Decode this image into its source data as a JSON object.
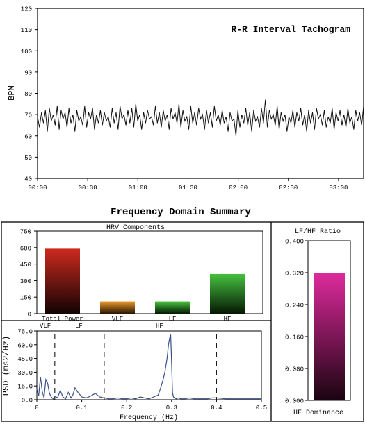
{
  "chart_data": [
    {
      "type": "line",
      "title": "R-R Interval Tachogram",
      "ylabel": "BPM",
      "xlabel": "",
      "ylim": [
        40,
        120
      ],
      "yticks": [
        40,
        50,
        60,
        70,
        80,
        90,
        100,
        110,
        120
      ],
      "xticks": [
        "00:00",
        "00:30",
        "01:00",
        "01:30",
        "02:00",
        "02:30",
        "03:00"
      ],
      "x_seconds_range": [
        0,
        195
      ],
      "y": [
        69,
        64,
        71,
        66,
        72,
        62,
        73,
        67,
        70,
        65,
        74,
        63,
        72,
        68,
        71,
        64,
        73,
        66,
        70,
        62,
        72,
        67,
        69,
        65,
        74,
        64,
        71,
        68,
        73,
        63,
        70,
        66,
        72,
        65,
        71,
        67,
        69,
        64,
        73,
        66,
        71,
        63,
        74,
        68,
        70,
        65,
        72,
        66,
        73,
        64,
        75,
        67,
        70,
        63,
        71,
        66,
        72,
        68,
        69,
        65,
        74,
        66,
        71,
        64,
        72,
        67,
        70,
        63,
        73,
        68,
        71,
        66,
        75,
        64,
        72,
        67,
        69,
        63,
        74,
        66,
        71,
        65,
        73,
        68,
        70,
        63,
        72,
        66,
        71,
        64,
        74,
        67,
        70,
        65,
        72,
        66,
        69,
        62,
        71,
        67,
        68,
        60,
        72,
        64,
        70,
        66,
        73,
        65,
        71,
        62,
        72,
        67,
        69,
        64,
        73,
        66,
        77,
        64,
        72,
        68,
        70,
        65,
        74,
        63,
        71,
        67,
        70,
        62,
        69,
        66,
        72,
        64,
        71,
        67,
        73,
        65,
        70,
        62,
        72,
        66,
        71,
        63,
        73,
        68,
        70,
        65,
        72,
        64,
        69,
        66,
        73,
        63,
        71,
        67,
        72,
        65,
        70,
        64,
        73,
        66,
        69,
        63,
        72,
        67,
        71,
        65,
        74
      ]
    },
    {
      "type": "bar",
      "section_title": "Frequency Domain Summary",
      "title": "HRV Components",
      "categories": [
        "Total Power",
        "VLF",
        "LF",
        "HF"
      ],
      "values": [
        590,
        110,
        110,
        360
      ],
      "ylim": [
        0,
        750
      ],
      "yticks": [
        0,
        150,
        300,
        450,
        600,
        750
      ],
      "colors": [
        "#cc2a1e",
        "#e8962a",
        "#3fb53a",
        "#3fb53a"
      ]
    },
    {
      "type": "line",
      "ylabel": "PSD (ms2/Hz)",
      "xlabel": "Frequency (Hz)",
      "xlim": [
        0,
        0.5
      ],
      "ylim": [
        0,
        75
      ],
      "xticks": [
        "0",
        "0.1",
        "0.2",
        "0.3",
        "0.4",
        "0.5"
      ],
      "yticks": [
        "0.0",
        "15.0",
        "30.0",
        "45.0",
        "60.0",
        "75.0"
      ],
      "band_labels": [
        "VLF",
        "LF",
        "HF"
      ],
      "band_edges": [
        0.04,
        0.15,
        0.4
      ],
      "x": [
        0.0,
        0.004,
        0.008,
        0.012,
        0.016,
        0.02,
        0.024,
        0.028,
        0.032,
        0.036,
        0.04,
        0.046,
        0.052,
        0.058,
        0.064,
        0.07,
        0.076,
        0.08,
        0.085,
        0.09,
        0.1,
        0.11,
        0.12,
        0.13,
        0.14,
        0.15,
        0.16,
        0.17,
        0.18,
        0.19,
        0.2,
        0.21,
        0.22,
        0.23,
        0.24,
        0.25,
        0.26,
        0.27,
        0.275,
        0.28,
        0.285,
        0.29,
        0.293,
        0.296,
        0.298,
        0.3,
        0.302,
        0.304,
        0.307,
        0.31,
        0.315,
        0.32,
        0.33,
        0.34,
        0.35,
        0.36,
        0.37,
        0.38,
        0.39,
        0.4,
        0.42,
        0.44,
        0.46,
        0.48,
        0.5
      ],
      "y": [
        12,
        4,
        25,
        9,
        2,
        22,
        18,
        7,
        3,
        1,
        4,
        2,
        10,
        3,
        1,
        8,
        2,
        5,
        13,
        9,
        3,
        2,
        4,
        7,
        3,
        2,
        1,
        1,
        2,
        1,
        1,
        2,
        1,
        3,
        2,
        1,
        3,
        5,
        12,
        20,
        30,
        45,
        60,
        68,
        71,
        42,
        8,
        3,
        2,
        1,
        2,
        1,
        1,
        2,
        1,
        1,
        1,
        1,
        2,
        2,
        1,
        1,
        1,
        1,
        1
      ]
    },
    {
      "type": "bar",
      "title": "LF/HF Ratio",
      "footer": "HF Dominance",
      "categories": [
        ""
      ],
      "values": [
        0.32
      ],
      "ylim": [
        0,
        0.4
      ],
      "yticks": [
        "0.000",
        "0.080",
        "0.160",
        "0.240",
        "0.320",
        "0.400"
      ],
      "colors": [
        "#d01e90"
      ]
    }
  ]
}
